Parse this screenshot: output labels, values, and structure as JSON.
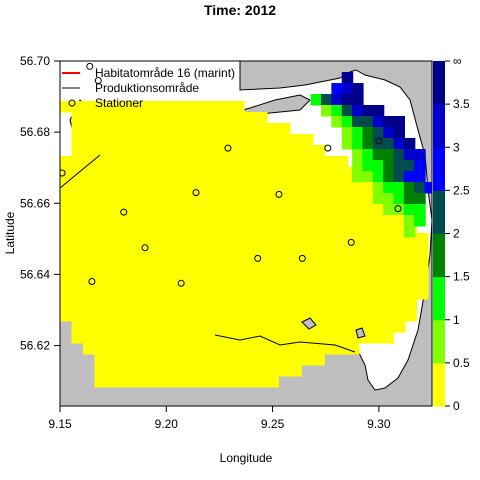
{
  "chart_data": {
    "type": "heatmap",
    "title": "Time: 2012",
    "xlabel": "Longitude",
    "ylabel": "Latitude",
    "xlim": [
      9.15,
      9.325
    ],
    "ylim": [
      56.603,
      56.7
    ],
    "x_ticks": [
      9.15,
      9.2,
      9.25,
      9.3
    ],
    "x_tick_labels": [
      "9.15",
      "9.20",
      "9.25",
      "9.30"
    ],
    "y_ticks": [
      56.62,
      56.64,
      56.66,
      56.68,
      56.7
    ],
    "y_tick_labels": [
      "56.62",
      "56.64",
      "56.66",
      "56.68",
      "56.70"
    ],
    "legend": {
      "placement": "top-left",
      "entries": [
        {
          "label": "Habitatområde 16 (marint)",
          "style": "line",
          "color": "#ff0000"
        },
        {
          "label": "Produktionsområde",
          "style": "line",
          "color": "#000000"
        },
        {
          "label": "Stationer",
          "style": "circle",
          "color": "#000000"
        }
      ]
    },
    "colorbar": {
      "placement": "right",
      "tick_labels": [
        "0",
        "0.5",
        "1",
        "1.5",
        "2",
        "2.5",
        "3",
        "3.5",
        "∞"
      ],
      "bins": [
        {
          "from": 0,
          "to": 0.5,
          "color": "#ffff00"
        },
        {
          "from": 0.5,
          "to": 1.0,
          "color": "#80ff00"
        },
        {
          "from": 1.0,
          "to": 1.5,
          "color": "#00ff00"
        },
        {
          "from": 1.5,
          "to": 2.0,
          "color": "#008000"
        },
        {
          "from": 2.0,
          "to": 2.5,
          "color": "#004d4d"
        },
        {
          "from": 2.5,
          "to": 3.0,
          "color": "#0000ff"
        },
        {
          "from": 3.0,
          "to": 3.5,
          "color": "#0000cc"
        },
        {
          "from": 3.5,
          "to": 4.0,
          "color": "#00008b"
        }
      ]
    },
    "colors": {
      "land": "#bebebe",
      "background_sea": "#ffffff",
      "station_marker": "#000000"
    },
    "stations": [
      {
        "lon": 9.151,
        "lat": 56.6685
      },
      {
        "lon": 9.164,
        "lat": 56.6985
      },
      {
        "lon": 9.168,
        "lat": 56.6945
      },
      {
        "lon": 9.165,
        "lat": 56.638
      },
      {
        "lon": 9.18,
        "lat": 56.6575
      },
      {
        "lon": 9.19,
        "lat": 56.6475
      },
      {
        "lon": 9.207,
        "lat": 56.6375
      },
      {
        "lon": 9.214,
        "lat": 56.663
      },
      {
        "lon": 9.229,
        "lat": 56.6755
      },
      {
        "lon": 9.243,
        "lat": 56.6445
      },
      {
        "lon": 9.253,
        "lat": 56.6625
      },
      {
        "lon": 9.264,
        "lat": 56.6445
      },
      {
        "lon": 9.276,
        "lat": 56.6755
      },
      {
        "lon": 9.287,
        "lat": 56.649
      },
      {
        "lon": 9.3,
        "lat": 56.6775
      },
      {
        "lon": 9.309,
        "lat": 56.6585
      }
    ]
  }
}
